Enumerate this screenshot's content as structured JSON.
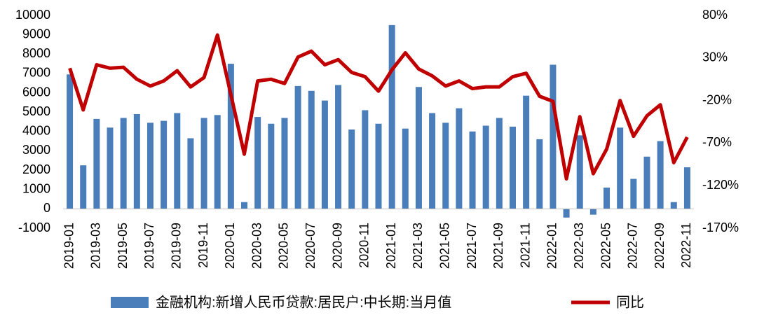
{
  "chart_data": {
    "type": "bar",
    "categories": [
      "2019-01",
      null,
      "2019-03",
      null,
      "2019-05",
      null,
      "2019-07",
      null,
      "2019-09",
      null,
      "2019-11",
      null,
      "2020-01",
      null,
      "2020-03",
      null,
      "2020-05",
      null,
      "2020-07",
      null,
      "2020-09",
      null,
      "2020-11",
      null,
      "2021-01",
      null,
      "2021-03",
      null,
      "2021-05",
      null,
      "2021-07",
      null,
      "2021-09",
      null,
      "2021-11",
      null,
      "2022-01",
      null,
      "2022-03",
      null,
      "2022-05",
      null,
      "2022-07",
      null,
      "2022-09",
      null,
      "2022-11"
    ],
    "series": [
      {
        "name": "金融机构:新增人民币贷款:居民户:中长期:当月值",
        "type": "bar",
        "color": "#4a7ebb",
        "values": [
          6950,
          2250,
          4650,
          4200,
          4700,
          4900,
          4450,
          4550,
          4950,
          3650,
          4700,
          4850,
          7500,
          350,
          4750,
          4400,
          4700,
          6350,
          6100,
          5600,
          6400,
          4100,
          5100,
          4400,
          9500,
          4150,
          6300,
          4950,
          4450,
          5200,
          4000,
          4300,
          4700,
          4250,
          5850,
          3600,
          7450,
          -450,
          3800,
          -300,
          1100,
          4200,
          1550,
          2700,
          3500,
          350,
          2150
        ]
      },
      {
        "name": "同比",
        "type": "line",
        "axis": "y2",
        "color": "#c00000",
        "values": [
          18,
          -31,
          22,
          18,
          19,
          5,
          -3,
          3,
          15,
          -4,
          7,
          57,
          -13,
          -83,
          3,
          5,
          0,
          31,
          38,
          22,
          28,
          13,
          8,
          -9,
          16,
          36,
          17,
          9,
          -3,
          3,
          -6,
          -4,
          -4,
          8,
          12,
          -15,
          -21,
          -112,
          -39,
          -106,
          -77,
          -20,
          -62,
          -38,
          -25,
          -93,
          -63
        ]
      }
    ],
    "ylim": [
      -1000,
      10000
    ],
    "yticks": [
      -1000,
      0,
      1000,
      2000,
      3000,
      4000,
      5000,
      6000,
      7000,
      8000,
      9000,
      10000
    ],
    "y2lim": [
      -170,
      80
    ],
    "y2ticks": [
      {
        "value": -170,
        "label": "-170%"
      },
      {
        "value": -120,
        "label": "-120%"
      },
      {
        "value": -70,
        "label": "-70%"
      },
      {
        "value": -20,
        "label": "-20%"
      },
      {
        "value": 30,
        "label": "30%"
      },
      {
        "value": 80,
        "label": "80%"
      }
    ],
    "legend": "bottom"
  }
}
